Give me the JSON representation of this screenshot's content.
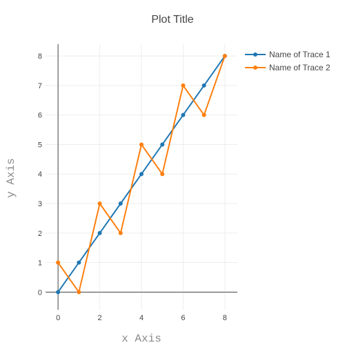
{
  "chart_data": {
    "type": "line",
    "title": "Plot Title",
    "xlabel": "x Axis",
    "ylabel": "y Axis",
    "xlim": [
      -0.6,
      8.6
    ],
    "ylim": [
      -0.6,
      8.4
    ],
    "xticks": [
      0,
      2,
      4,
      6,
      8
    ],
    "yticks": [
      0,
      1,
      2,
      3,
      4,
      5,
      6,
      7,
      8
    ],
    "grid": true,
    "legend_position": "top-right",
    "series": [
      {
        "name": "Name of Trace 1",
        "color": "#1f77b4",
        "x": [
          0,
          1,
          2,
          3,
          4,
          5,
          6,
          7,
          8
        ],
        "y": [
          0,
          1,
          2,
          3,
          4,
          5,
          6,
          7,
          8
        ]
      },
      {
        "name": "Name of Trace 2",
        "color": "#ff7f0e",
        "x": [
          0,
          1,
          2,
          3,
          4,
          5,
          6,
          7,
          8
        ],
        "y": [
          1,
          0,
          3,
          2,
          5,
          4,
          7,
          6,
          8
        ]
      }
    ]
  }
}
